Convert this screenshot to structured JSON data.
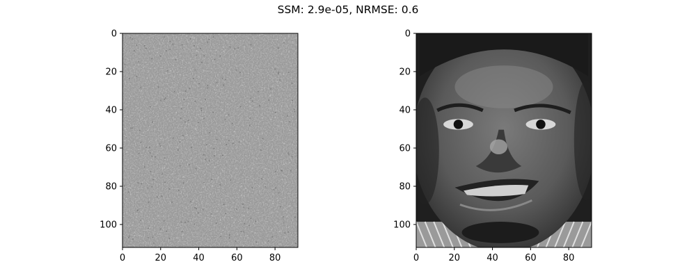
{
  "title": "SSM: 2.9e-05, NRMSE: 0.6",
  "chart_data": [
    {
      "type": "heatmap",
      "image": "noise-residual",
      "colormap": "gray",
      "xlim": [
        0,
        92
      ],
      "ylim": [
        112,
        0
      ],
      "xticks": [
        0,
        20,
        40,
        60,
        80
      ],
      "yticks": [
        0,
        20,
        40,
        60,
        80,
        100
      ],
      "base_value": 0.6
    },
    {
      "type": "heatmap",
      "image": "grayscale-face",
      "colormap": "gray",
      "xlim": [
        0,
        92
      ],
      "ylim": [
        112,
        0
      ],
      "xticks": [
        0,
        20,
        40,
        60,
        80
      ],
      "yticks": [
        0,
        20,
        40,
        60,
        80,
        100
      ]
    }
  ]
}
